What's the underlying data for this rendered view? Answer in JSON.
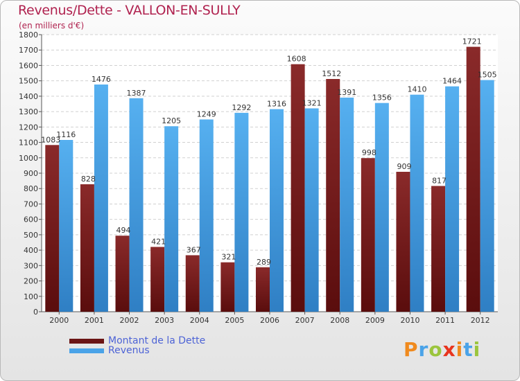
{
  "chart_data": {
    "type": "bar",
    "title": "Revenus/Dette - VALLON-EN-SULLY",
    "subtitle": "(en milliers d'€)",
    "xlabel": "",
    "ylabel": "",
    "ylim": [
      0,
      1800
    ],
    "yticks": [
      0,
      100,
      200,
      300,
      400,
      500,
      600,
      700,
      800,
      900,
      1000,
      1100,
      1200,
      1300,
      1400,
      1500,
      1600,
      1700,
      1800
    ],
    "grid": true,
    "categories": [
      "2000",
      "2001",
      "2002",
      "2003",
      "2004",
      "2005",
      "2006",
      "2007",
      "2008",
      "2009",
      "2010",
      "2011",
      "2012"
    ],
    "series": [
      {
        "name": "Montant de la Dette",
        "color": "#7a1e1e",
        "values": [
          1083,
          828,
          494,
          421,
          367,
          321,
          289,
          1608,
          1512,
          998,
          909,
          817,
          1721
        ]
      },
      {
        "name": "Revenus",
        "color": "#4aa3e8",
        "values": [
          1116,
          1476,
          1387,
          1205,
          1249,
          1292,
          1316,
          1321,
          1391,
          1356,
          1410,
          1464,
          1505
        ]
      }
    ]
  },
  "brand": {
    "letters": [
      "P",
      "r",
      "o",
      "x",
      "i",
      "t",
      "i"
    ],
    "colors": [
      "#f08a1e",
      "#4aa3e8",
      "#9bc53d",
      "#e8351e",
      "#f08a1e",
      "#4aa3e8",
      "#9bc53d"
    ]
  }
}
